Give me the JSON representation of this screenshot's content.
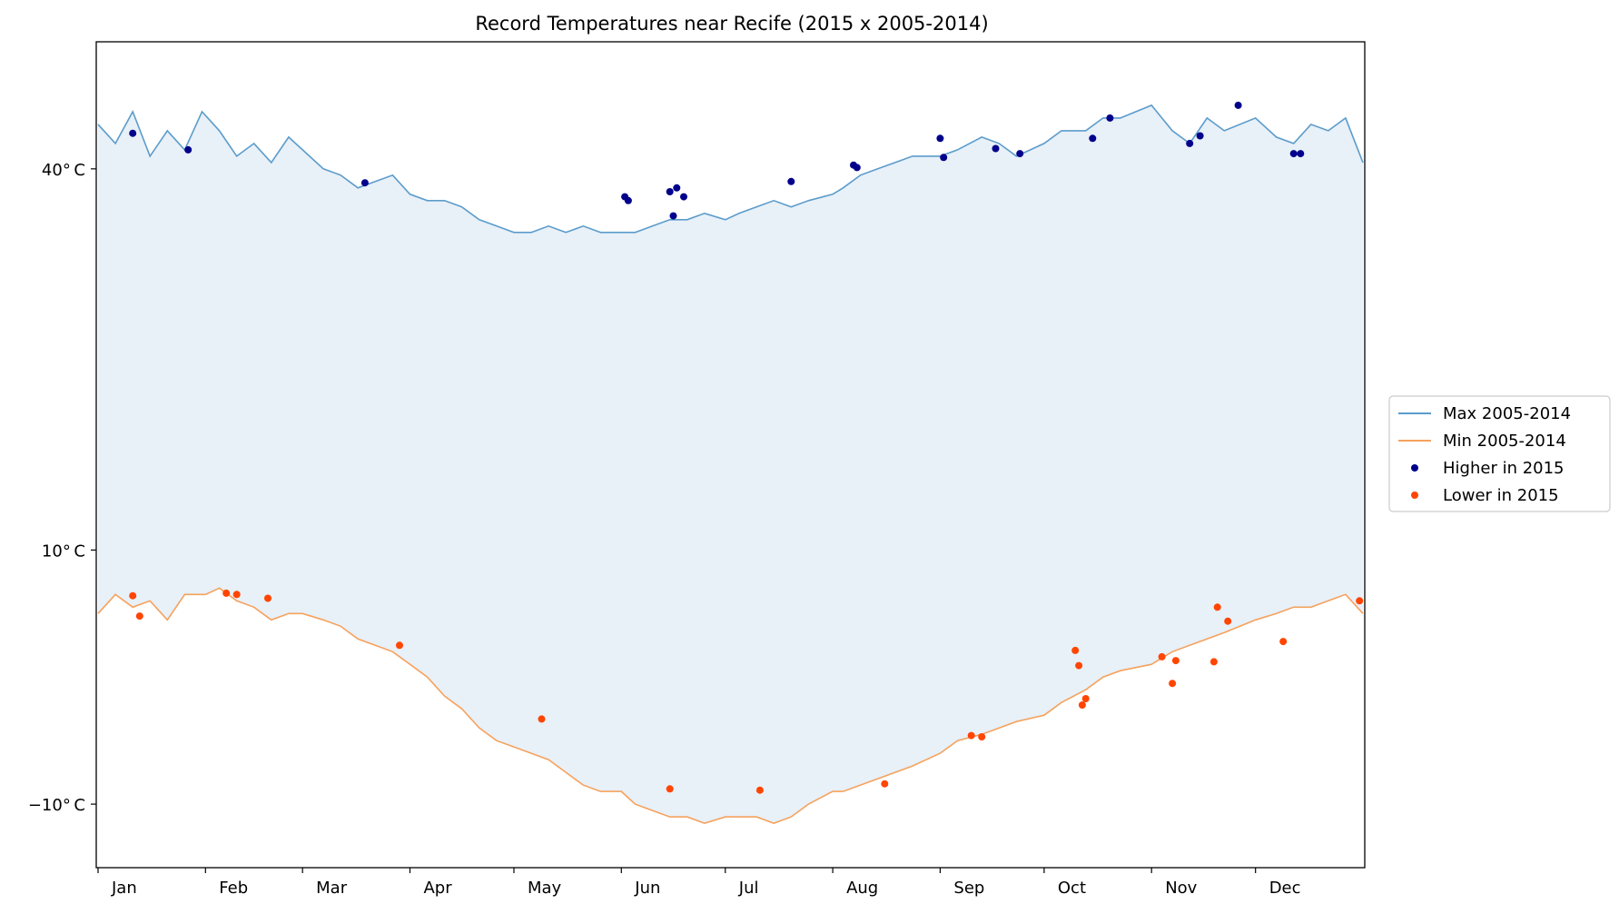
{
  "chart_data": {
    "type": "line",
    "title": "Record Temperatures near Recife (2015 x 2005-2014)",
    "xlabel": "",
    "ylabel": "",
    "x_unit": "day of year",
    "xlim": [
      0,
      365
    ],
    "ylim": [
      -15,
      50
    ],
    "y_ticks": [
      {
        "value": 40,
        "label": "40$^\\circ$C"
      },
      {
        "value": 10,
        "label": "10$^\\circ$C"
      },
      {
        "value": -10,
        "label": "−10$^\\circ$C"
      }
    ],
    "x_ticks": [
      {
        "value": 0,
        "label": "Jan"
      },
      {
        "value": 31,
        "label": "Feb"
      },
      {
        "value": 59,
        "label": "Mar"
      },
      {
        "value": 90,
        "label": "Apr"
      },
      {
        "value": 120,
        "label": "May"
      },
      {
        "value": 151,
        "label": "Jun"
      },
      {
        "value": 181,
        "label": "Jul"
      },
      {
        "value": 212,
        "label": "Aug"
      },
      {
        "value": 243,
        "label": "Sep"
      },
      {
        "value": 273,
        "label": "Oct"
      },
      {
        "value": 304,
        "label": "Nov"
      },
      {
        "value": 334,
        "label": "Dec"
      }
    ],
    "grid": false,
    "legend_position": "outside-right",
    "fill_between": {
      "color": "#e8f0f8"
    },
    "series": [
      {
        "name": "Max 2005-2014",
        "kind": "line",
        "color": "#5b9ccb",
        "points": [
          [
            0,
            43.5
          ],
          [
            5,
            42
          ],
          [
            10,
            44.5
          ],
          [
            15,
            41
          ],
          [
            20,
            43
          ],
          [
            25,
            41.5
          ],
          [
            30,
            44.5
          ],
          [
            35,
            43
          ],
          [
            40,
            41
          ],
          [
            45,
            42
          ],
          [
            50,
            40.5
          ],
          [
            55,
            42.5
          ],
          [
            59,
            41.5
          ],
          [
            65,
            40
          ],
          [
            70,
            39.5
          ],
          [
            75,
            38.5
          ],
          [
            80,
            39
          ],
          [
            85,
            39.5
          ],
          [
            90,
            38
          ],
          [
            95,
            37.5
          ],
          [
            100,
            37.5
          ],
          [
            105,
            37
          ],
          [
            110,
            36
          ],
          [
            115,
            35.5
          ],
          [
            120,
            35
          ],
          [
            125,
            35
          ],
          [
            130,
            35.5
          ],
          [
            135,
            35
          ],
          [
            140,
            35.5
          ],
          [
            145,
            35
          ],
          [
            151,
            35
          ],
          [
            155,
            35
          ],
          [
            160,
            35.5
          ],
          [
            165,
            36
          ],
          [
            170,
            36
          ],
          [
            175,
            36.5
          ],
          [
            181,
            36
          ],
          [
            185,
            36.5
          ],
          [
            190,
            37
          ],
          [
            195,
            37.5
          ],
          [
            200,
            37
          ],
          [
            205,
            37.5
          ],
          [
            212,
            38
          ],
          [
            215,
            38.5
          ],
          [
            220,
            39.5
          ],
          [
            225,
            40
          ],
          [
            230,
            40.5
          ],
          [
            235,
            41
          ],
          [
            243,
            41
          ],
          [
            248,
            41.5
          ],
          [
            255,
            42.5
          ],
          [
            260,
            42
          ],
          [
            265,
            41
          ],
          [
            273,
            42
          ],
          [
            278,
            43
          ],
          [
            285,
            43
          ],
          [
            290,
            44
          ],
          [
            295,
            44
          ],
          [
            304,
            45
          ],
          [
            310,
            43
          ],
          [
            315,
            42
          ],
          [
            320,
            44
          ],
          [
            325,
            43
          ],
          [
            334,
            44
          ],
          [
            340,
            42.5
          ],
          [
            345,
            42
          ],
          [
            350,
            43.5
          ],
          [
            355,
            43
          ],
          [
            360,
            44
          ],
          [
            365,
            40.5
          ]
        ]
      },
      {
        "name": "Min 2005-2014",
        "kind": "line",
        "color": "#f5a25d",
        "points": [
          [
            0,
            5
          ],
          [
            5,
            6.5
          ],
          [
            10,
            5.5
          ],
          [
            15,
            6
          ],
          [
            20,
            4.5
          ],
          [
            25,
            6.5
          ],
          [
            31,
            6.5
          ],
          [
            35,
            7
          ],
          [
            40,
            6
          ],
          [
            45,
            5.5
          ],
          [
            50,
            4.5
          ],
          [
            55,
            5
          ],
          [
            59,
            5
          ],
          [
            65,
            4.5
          ],
          [
            70,
            4
          ],
          [
            75,
            3
          ],
          [
            80,
            2.5
          ],
          [
            85,
            2
          ],
          [
            90,
            1
          ],
          [
            95,
            0
          ],
          [
            100,
            -1.5
          ],
          [
            105,
            -2.5
          ],
          [
            110,
            -4
          ],
          [
            115,
            -5
          ],
          [
            120,
            -5.5
          ],
          [
            125,
            -6
          ],
          [
            130,
            -6.5
          ],
          [
            135,
            -7.5
          ],
          [
            140,
            -8.5
          ],
          [
            145,
            -9
          ],
          [
            151,
            -9
          ],
          [
            155,
            -10
          ],
          [
            160,
            -10.5
          ],
          [
            165,
            -11
          ],
          [
            170,
            -11
          ],
          [
            175,
            -11.5
          ],
          [
            181,
            -11
          ],
          [
            185,
            -11
          ],
          [
            190,
            -11
          ],
          [
            195,
            -11.5
          ],
          [
            200,
            -11
          ],
          [
            205,
            -10
          ],
          [
            212,
            -9
          ],
          [
            215,
            -9
          ],
          [
            220,
            -8.5
          ],
          [
            225,
            -8
          ],
          [
            230,
            -7.5
          ],
          [
            235,
            -7
          ],
          [
            243,
            -6
          ],
          [
            248,
            -5
          ],
          [
            255,
            -4.5
          ],
          [
            260,
            -4
          ],
          [
            265,
            -3.5
          ],
          [
            273,
            -3
          ],
          [
            278,
            -2
          ],
          [
            285,
            -1
          ],
          [
            290,
            0
          ],
          [
            295,
            0.5
          ],
          [
            304,
            1
          ],
          [
            310,
            2
          ],
          [
            315,
            2.5
          ],
          [
            320,
            3
          ],
          [
            325,
            3.5
          ],
          [
            334,
            4.5
          ],
          [
            340,
            5
          ],
          [
            345,
            5.5
          ],
          [
            350,
            5.5
          ],
          [
            355,
            6
          ],
          [
            360,
            6.5
          ],
          [
            365,
            5
          ]
        ]
      },
      {
        "name": "Higher in 2015",
        "kind": "scatter",
        "color": "#00008b",
        "points": [
          [
            10,
            42.8
          ],
          [
            26,
            41.5
          ],
          [
            77,
            38.9
          ],
          [
            152,
            37.8
          ],
          [
            153,
            37.5
          ],
          [
            165,
            38.2
          ],
          [
            166,
            36.3
          ],
          [
            167,
            38.5
          ],
          [
            169,
            37.8
          ],
          [
            200,
            39
          ],
          [
            218,
            40.3
          ],
          [
            219,
            40.1
          ],
          [
            243,
            42.4
          ],
          [
            244,
            40.9
          ],
          [
            259,
            41.6
          ],
          [
            266,
            41.2
          ],
          [
            287,
            42.4
          ],
          [
            292,
            44
          ],
          [
            315,
            42
          ],
          [
            318,
            42.6
          ],
          [
            329,
            45
          ],
          [
            345,
            41.2
          ],
          [
            347,
            41.2
          ]
        ]
      },
      {
        "name": "Lower in 2015",
        "kind": "scatter",
        "color": "#ff4500",
        "points": [
          [
            10,
            6.4
          ],
          [
            12,
            4.8
          ],
          [
            37,
            6.6
          ],
          [
            40,
            6.5
          ],
          [
            49,
            6.2
          ],
          [
            87,
            2.5
          ],
          [
            128,
            -3.3
          ],
          [
            165,
            -8.8
          ],
          [
            191,
            -8.9
          ],
          [
            227,
            -8.4
          ],
          [
            252,
            -4.6
          ],
          [
            255,
            -4.7
          ],
          [
            282,
            2.1
          ],
          [
            283,
            0.9
          ],
          [
            284,
            -2.2
          ],
          [
            285,
            -1.7
          ],
          [
            307,
            1.6
          ],
          [
            310,
            -0.5
          ],
          [
            311,
            1.3
          ],
          [
            322,
            1.2
          ],
          [
            323,
            5.5
          ],
          [
            326,
            4.4
          ],
          [
            342,
            2.8
          ],
          [
            364,
            6
          ]
        ]
      }
    ]
  }
}
